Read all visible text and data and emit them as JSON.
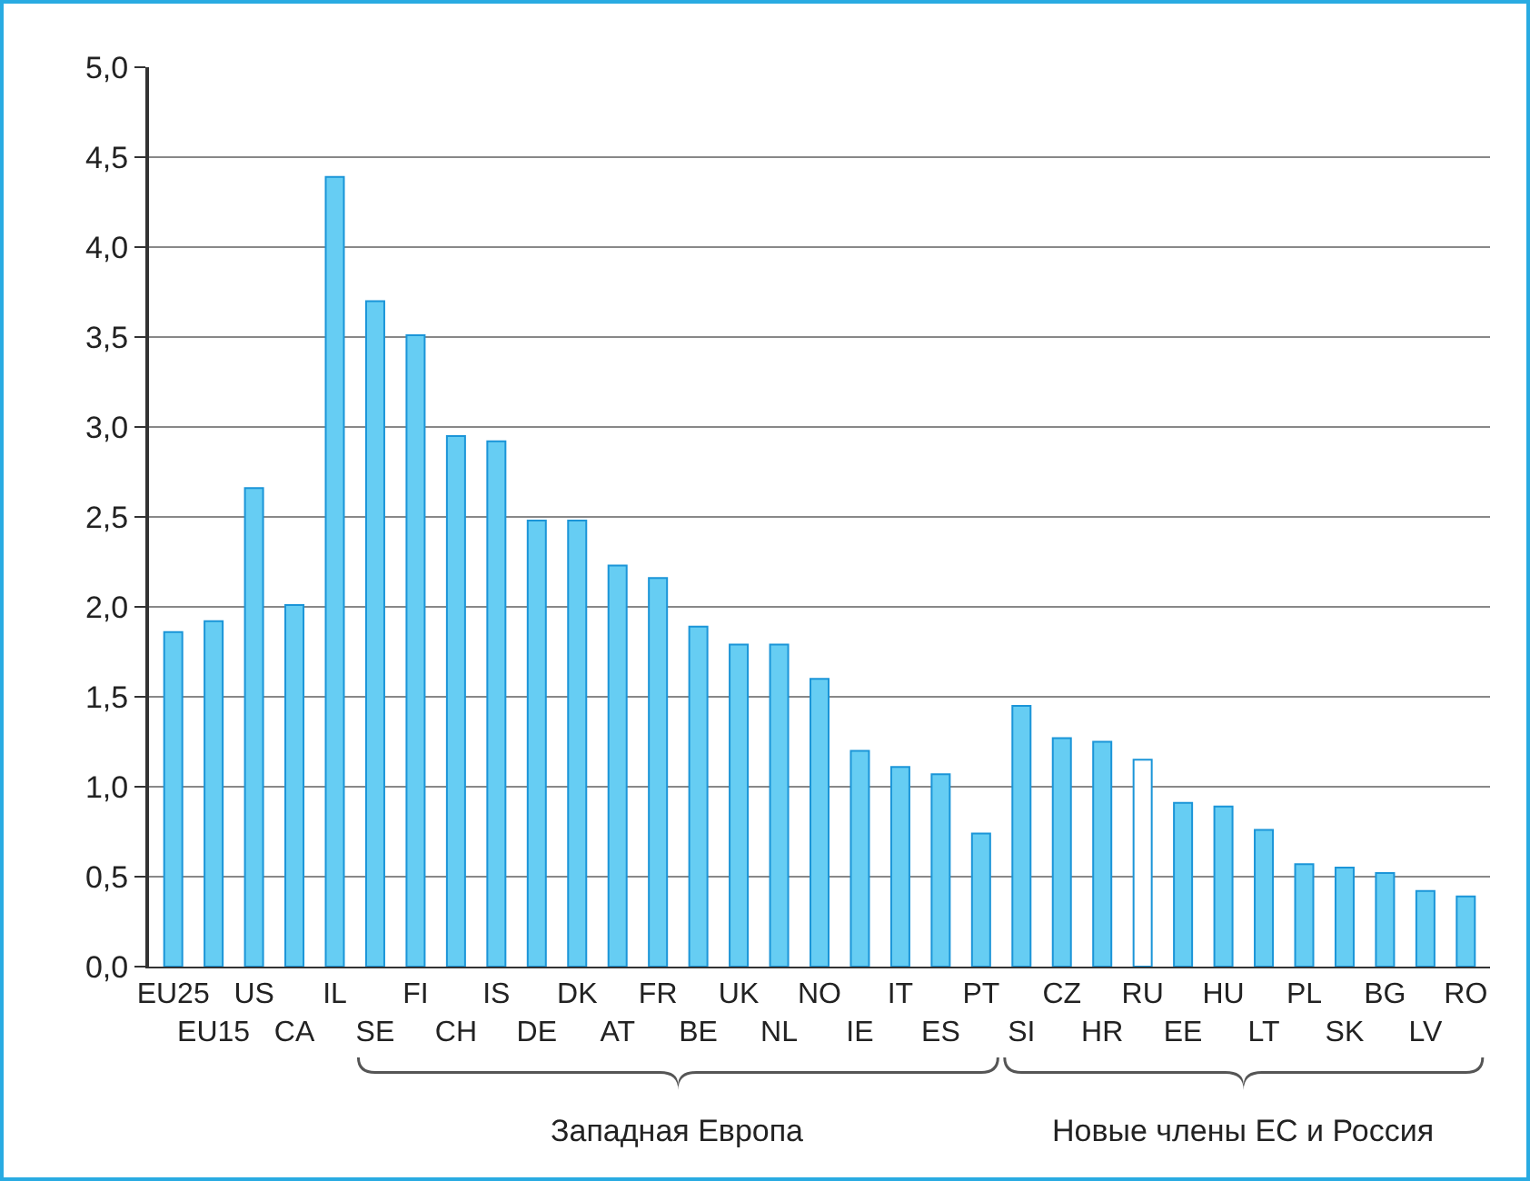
{
  "chart_data": {
    "type": "bar",
    "categories": [
      "EU25",
      "EU15",
      "US",
      "CA",
      "IL",
      "SE",
      "FI",
      "CH",
      "IS",
      "DE",
      "DK",
      "AT",
      "FR",
      "BE",
      "UK",
      "NL",
      "NO",
      "IE",
      "IT",
      "ES",
      "PT",
      "SI",
      "CZ",
      "HR",
      "RU",
      "EE",
      "HU",
      "LT",
      "PL",
      "SK",
      "BG",
      "LV",
      "RO"
    ],
    "values": [
      1.86,
      1.92,
      2.66,
      2.01,
      4.39,
      3.7,
      3.51,
      2.95,
      2.92,
      2.48,
      2.48,
      2.23,
      2.16,
      1.89,
      1.79,
      1.79,
      1.6,
      1.2,
      1.11,
      1.07,
      0.74,
      1.45,
      1.27,
      1.25,
      1.15,
      0.91,
      0.89,
      0.76,
      0.57,
      0.55,
      0.52,
      0.42,
      0.39
    ],
    "colors": [
      "#66cdf3",
      "#66cdf3",
      "#66cdf3",
      "#66cdf3",
      "#66cdf3",
      "#66cdf3",
      "#66cdf3",
      "#66cdf3",
      "#66cdf3",
      "#66cdf3",
      "#66cdf3",
      "#66cdf3",
      "#66cdf3",
      "#66cdf3",
      "#66cdf3",
      "#66cdf3",
      "#66cdf3",
      "#66cdf3",
      "#66cdf3",
      "#66cdf3",
      "#66cdf3",
      "#66cdf3",
      "#66cdf3",
      "#66cdf3",
      "#ffffff",
      "#66cdf3",
      "#66cdf3",
      "#66cdf3",
      "#66cdf3",
      "#66cdf3",
      "#66cdf3",
      "#66cdf3",
      "#66cdf3"
    ],
    "ylim": [
      0,
      5
    ],
    "yticks": [
      {
        "value": 0,
        "label": "0,0"
      },
      {
        "value": 0.5,
        "label": "0,5"
      },
      {
        "value": 1,
        "label": "1,0"
      },
      {
        "value": 1.5,
        "label": "1,5"
      },
      {
        "value": 2,
        "label": "2,0"
      },
      {
        "value": 2.5,
        "label": "2,5"
      },
      {
        "value": 3,
        "label": "3,0"
      },
      {
        "value": 3.5,
        "label": "3,5"
      },
      {
        "value": 4,
        "label": "4,0"
      },
      {
        "value": 4.5,
        "label": "4,5"
      },
      {
        "value": 5,
        "label": "5,0"
      }
    ],
    "grid": "y",
    "annotations": [
      "Западная Европа",
      "Новые члены ЕС и Россия"
    ]
  }
}
